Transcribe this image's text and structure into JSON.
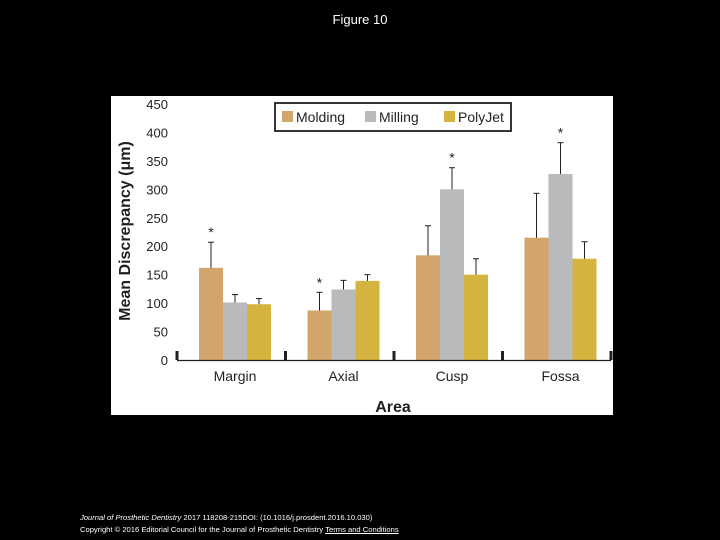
{
  "slide": {
    "title": "Figure 10"
  },
  "footer": {
    "citation_journal": "Journal of Prosthetic Dentistry",
    "citation_rest": " 2017 118208-215DOI: (10.1016/j.prosdent.2016.10.030)",
    "copyright": "Copyright © 2016 Editorial Council for the Journal of Prosthetic Dentistry ",
    "terms_link": "Terms and Conditions"
  },
  "colors": {
    "molding": "#d2a56c",
    "milling": "#b9babc",
    "polyjet": "#d4b43f",
    "axis": "#231f20",
    "error_bar": "#231f20"
  },
  "chart_data": {
    "type": "bar",
    "title": "",
    "xlabel": "Area",
    "ylabel": "Mean Discrepancy (μm)",
    "ylim": [
      0,
      450
    ],
    "yticks": [
      0,
      50,
      100,
      150,
      200,
      250,
      300,
      350,
      400,
      450
    ],
    "grid": false,
    "legend_position": "top",
    "categories": [
      "Margin",
      "Axial",
      "Cusp",
      "Fossa"
    ],
    "series": [
      {
        "name": "Molding",
        "color_key": "molding",
        "values": [
          162,
          87,
          184,
          215
        ],
        "errors": [
          45,
          32,
          52,
          78
        ],
        "significance": [
          "*",
          "*",
          "",
          ""
        ]
      },
      {
        "name": "Milling",
        "color_key": "milling",
        "values": [
          101,
          124,
          300,
          327
        ],
        "errors": [
          14,
          16,
          38,
          55
        ],
        "significance": [
          "",
          "",
          "*",
          "*"
        ]
      },
      {
        "name": "PolyJet",
        "color_key": "polyjet",
        "values": [
          98,
          139,
          150,
          178
        ],
        "errors": [
          10,
          11,
          28,
          30
        ],
        "significance": [
          "",
          "",
          "",
          ""
        ]
      }
    ]
  }
}
